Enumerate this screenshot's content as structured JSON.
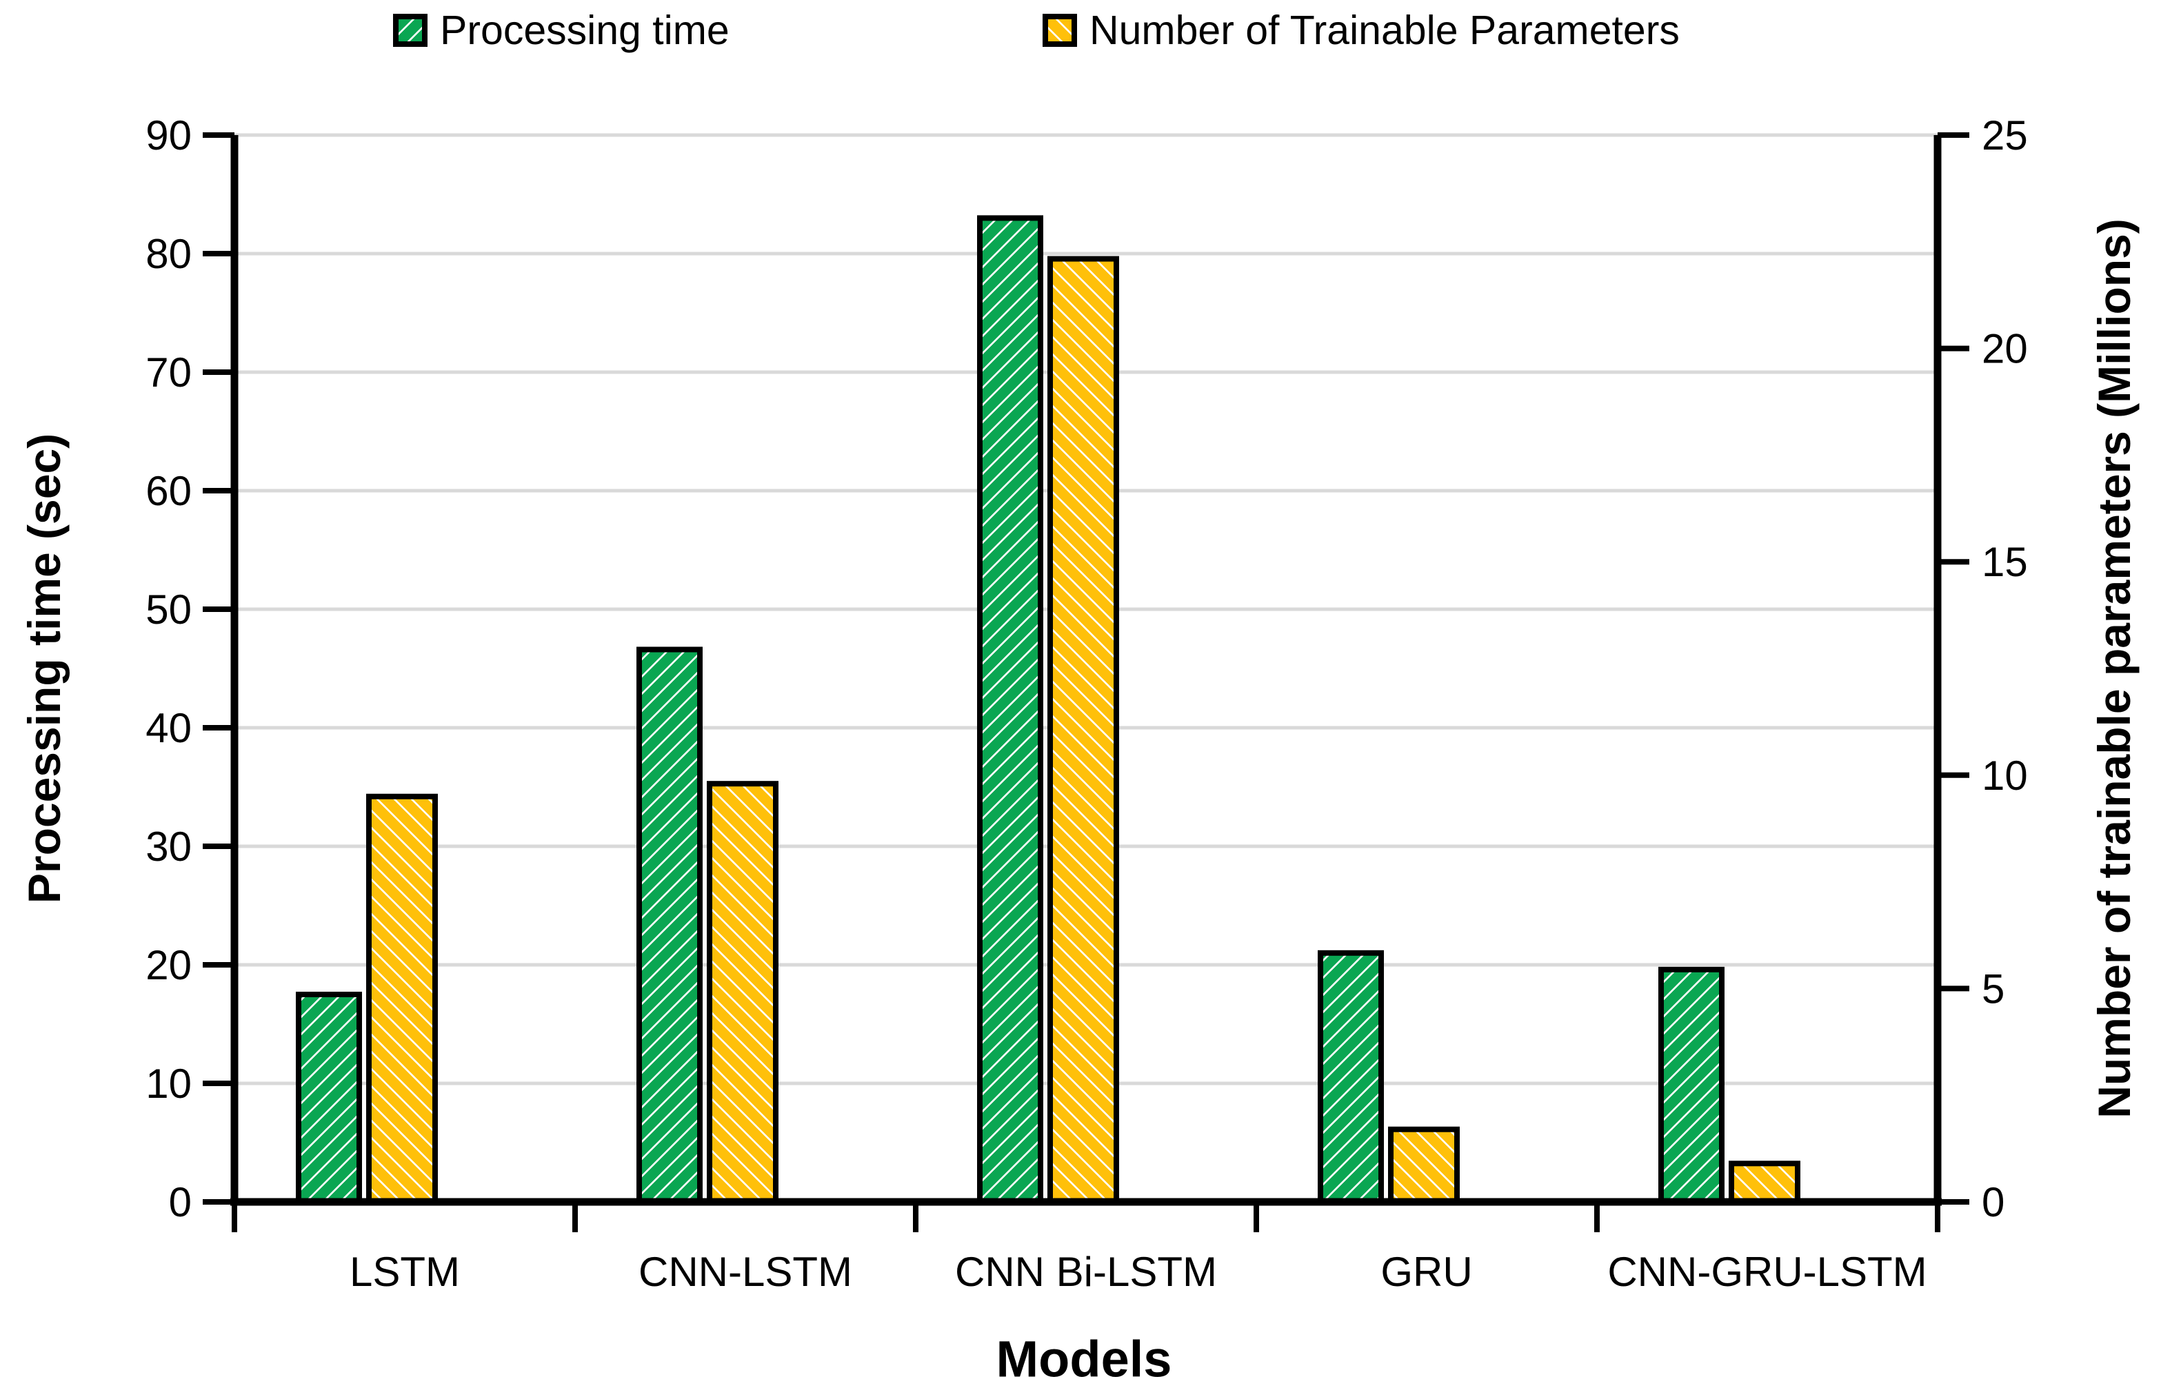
{
  "legend": {
    "items": [
      {
        "label": "Processing time",
        "swatch": "green-diagonal-hatch"
      },
      {
        "label": "Number of Trainable Parameters",
        "swatch": "yellow-diagonal-hatch"
      }
    ]
  },
  "chart_data": {
    "type": "bar",
    "title": "",
    "xlabel": "Models",
    "categories": [
      "LSTM",
      "CNN-LSTM",
      "CNN Bi-LSTM",
      "GRU",
      "CNN-GRU-LSTM"
    ],
    "series": [
      {
        "name": "Processing time",
        "axis": "left",
        "color": "#0AA652",
        "hatch": "/",
        "values": [
          17.5,
          46.6,
          83.0,
          21.0,
          19.6
        ]
      },
      {
        "name": "Number of Trainable Parameters",
        "axis": "right",
        "color": "#FFC00A",
        "hatch": "\\",
        "values": [
          9.5,
          9.8,
          22.1,
          1.7,
          0.9
        ]
      }
    ],
    "left_axis": {
      "label": "Processing time (sec)",
      "min": 0,
      "max": 90,
      "ticks": [
        0,
        10,
        20,
        30,
        40,
        50,
        60,
        70,
        80,
        90
      ]
    },
    "right_axis": {
      "label": "Number of trainable parameters  (Millions)",
      "min": 0,
      "max": 25,
      "ticks": [
        0,
        5,
        10,
        15,
        20,
        25
      ]
    },
    "grid": true,
    "grid_color": "#D9D9D9",
    "bar_border_color": "#000000",
    "legend_position": "top"
  }
}
